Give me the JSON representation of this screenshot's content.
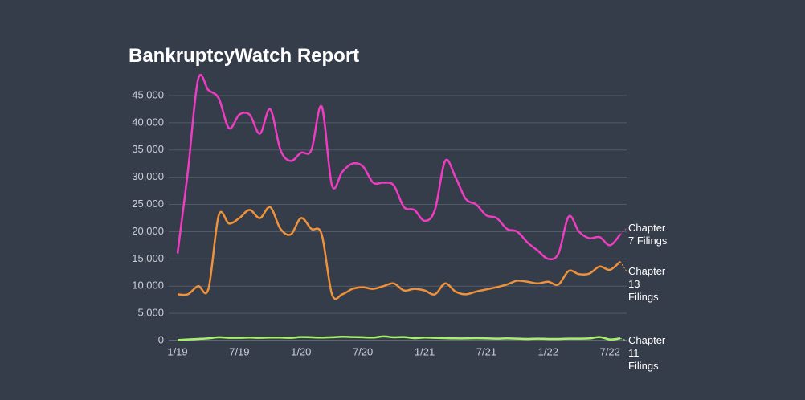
{
  "chart_data": {
    "type": "line",
    "title": "BankruptcyWatch Report",
    "categories": [
      "1/19",
      null,
      null,
      null,
      null,
      null,
      "7/19",
      null,
      null,
      null,
      null,
      null,
      "1/20",
      null,
      null,
      null,
      null,
      null,
      "7/20",
      null,
      null,
      null,
      null,
      null,
      "1/21",
      null,
      null,
      null,
      null,
      null,
      "7/21",
      null,
      null,
      null,
      null,
      null,
      "1/22",
      null,
      null,
      null,
      null,
      null,
      "7/22",
      null
    ],
    "series": [
      {
        "name": "Chapter 7 Filings",
        "color": "#f03cc2",
        "values": [
          16000,
          31000,
          48000,
          46000,
          44500,
          39000,
          41500,
          41500,
          38000,
          42500,
          35000,
          33000,
          34500,
          35000,
          43000,
          28500,
          31000,
          32500,
          32000,
          29000,
          29000,
          28500,
          24500,
          24000,
          22000,
          24000,
          33000,
          30000,
          26000,
          25000,
          23000,
          22500,
          20500,
          20000,
          18000,
          16500,
          15000,
          16000,
          22800,
          20000,
          18800,
          19000,
          17500,
          19500
        ]
      },
      {
        "name": "Chapter 13 Filings",
        "color": "#f0923a",
        "values": [
          8500,
          8500,
          10000,
          9500,
          23000,
          21500,
          22500,
          24000,
          22500,
          24500,
          20500,
          19500,
          22500,
          20500,
          19500,
          8500,
          8500,
          9500,
          9800,
          9500,
          10000,
          10500,
          9200,
          9500,
          9200,
          8500,
          10500,
          9000,
          8500,
          9000,
          9400,
          9800,
          10300,
          11000,
          10800,
          10500,
          10800,
          10300,
          12800,
          12200,
          12300,
          13600,
          13000,
          14500
        ]
      },
      {
        "name": "Chapter 11 Filings",
        "color": "#a8f06c",
        "values": [
          100,
          200,
          300,
          400,
          600,
          500,
          500,
          550,
          500,
          550,
          550,
          500,
          650,
          600,
          550,
          600,
          700,
          650,
          600,
          550,
          750,
          600,
          650,
          450,
          550,
          500,
          450,
          400,
          400,
          450,
          400,
          350,
          400,
          350,
          300,
          350,
          300,
          300,
          350,
          350,
          400,
          650,
          200,
          400
        ]
      }
    ],
    "ylim": [
      0,
      45000
    ],
    "yticks": [
      0,
      {
        "value": 5000,
        "label": "5,000"
      },
      {
        "value": 10000,
        "label": "10,000"
      },
      {
        "value": 15000,
        "label": "15,000"
      },
      {
        "value": 20000,
        "label": "20,000"
      },
      {
        "value": 25000,
        "label": "25,000"
      },
      {
        "value": 30000,
        "label": "30,000"
      },
      {
        "value": 35000,
        "label": "35,000"
      },
      {
        "value": 40000,
        "label": "40,000"
      },
      {
        "value": 45000,
        "label": "45,000"
      }
    ],
    "grid": true
  }
}
